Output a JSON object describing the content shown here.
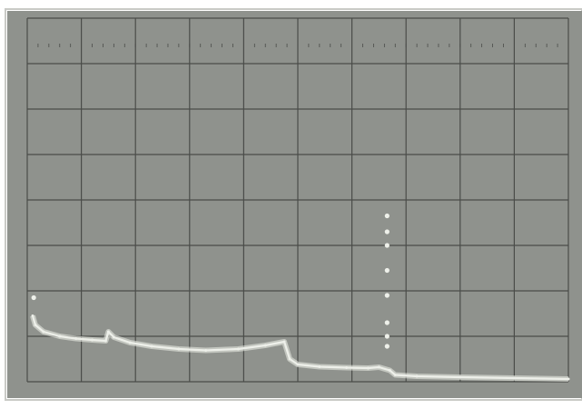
{
  "chart_data": {
    "type": "line",
    "title": "",
    "xlabel": "",
    "ylabel": "",
    "grid": true,
    "xlim": [
      0,
      10
    ],
    "ylim": [
      0,
      8
    ],
    "grid_divisions": {
      "x": 10,
      "y": 8
    },
    "colors": {
      "screen": "#8f928d",
      "screen_dark": "#7e817c",
      "grid": "#4a4c49",
      "trace": "#eef0ea",
      "frame": "#c9cac6"
    },
    "series": [
      {
        "x": [
          0.1,
          0.15,
          0.3,
          0.6,
          0.9,
          1.2,
          1.45,
          1.5,
          1.6,
          1.9,
          2.3,
          2.8,
          3.3,
          3.9,
          4.4,
          4.75,
          4.85,
          5.0,
          5.4,
          5.9,
          6.3,
          6.5,
          6.7,
          6.8,
          7.2,
          8.0,
          9.0,
          10.0
        ],
        "y": [
          1.45,
          1.25,
          1.1,
          1.0,
          0.95,
          0.92,
          0.9,
          1.1,
          0.98,
          0.86,
          0.78,
          0.72,
          0.69,
          0.72,
          0.8,
          0.88,
          0.5,
          0.38,
          0.33,
          0.31,
          0.3,
          0.32,
          0.25,
          0.15,
          0.12,
          0.1,
          0.08,
          0.06
        ]
      }
    ],
    "scatter_points": {
      "x": [
        0.12,
        6.65,
        6.65,
        6.65,
        6.65,
        6.65,
        6.65,
        6.65,
        6.65
      ],
      "y": [
        1.85,
        3.65,
        3.3,
        3.0,
        2.45,
        1.9,
        1.3,
        1.0,
        0.78
      ]
    }
  }
}
